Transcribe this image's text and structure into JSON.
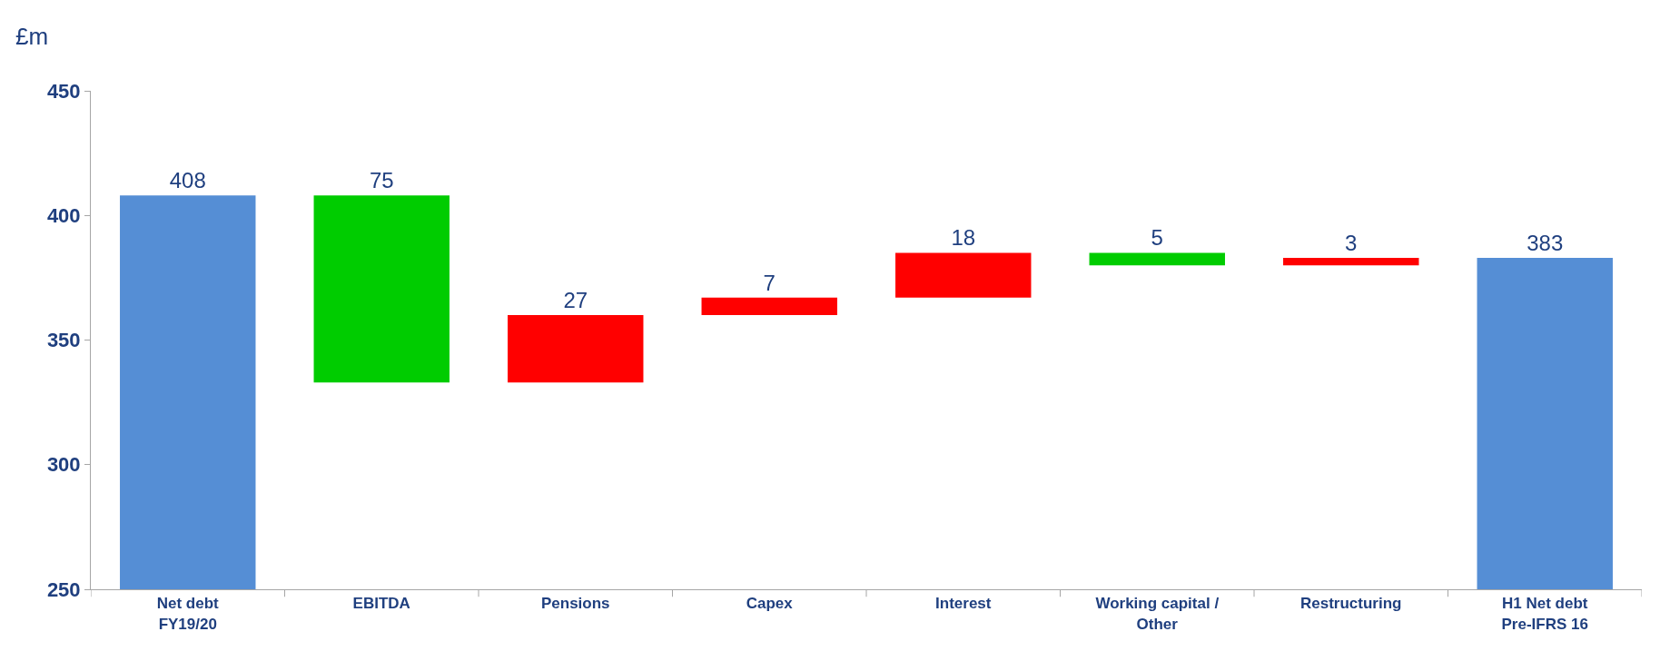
{
  "chart_data": {
    "type": "bar",
    "ylabel": "£m",
    "categories": [
      "Net debt\nFY19/20",
      "EBITDA",
      "Pensions",
      "Capex",
      "Interest",
      "Working capital /\nOther",
      "Restructuring",
      "H1 Net debt\nPre-IFRS 16"
    ],
    "values": [
      408,
      75,
      27,
      7,
      18,
      5,
      3,
      383
    ],
    "base": [
      null,
      333,
      333,
      360,
      367,
      380,
      380,
      null
    ],
    "colors": [
      "#558ed5",
      "#00cc00",
      "#ff0000",
      "#ff0000",
      "#ff0000",
      "#00cc00",
      "#ff0000",
      "#558ed5"
    ],
    "ylim": [
      250,
      450
    ],
    "yticks": [
      250,
      300,
      350,
      400,
      450
    ],
    "data_labels": true
  }
}
